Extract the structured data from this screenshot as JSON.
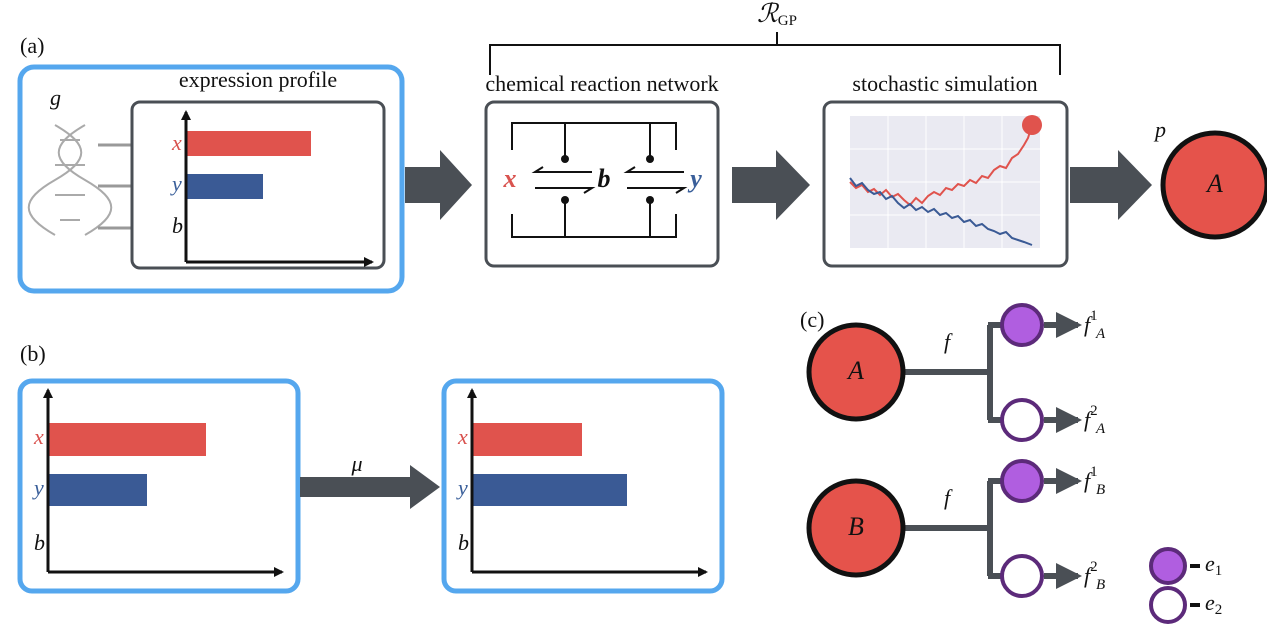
{
  "panels": {
    "a": {
      "label": "(a)",
      "genome": "g",
      "expression_profile": {
        "title": "expression profile",
        "labels": [
          "x",
          "y",
          "b"
        ]
      },
      "reaction_network": {
        "title": "chemical reaction network",
        "species": [
          "x",
          "b",
          "y"
        ]
      },
      "stochastic_simulation": {
        "title": "stochastic simulation"
      },
      "bracket": {
        "base": "ℛ",
        "sub": "GP"
      },
      "output": {
        "label": "p",
        "node": "A"
      }
    },
    "b": {
      "label": "(b)",
      "before": [
        "x",
        "y",
        "b"
      ],
      "operator": "μ",
      "after": [
        "x",
        "y",
        "b"
      ]
    },
    "c": {
      "label": "(c)",
      "trees": [
        {
          "node": "A",
          "edge": "f",
          "children": [
            {
              "base": "f",
              "sub": "A",
              "sup": "1"
            },
            {
              "base": "f",
              "sub": "A",
              "sup": "2"
            }
          ]
        },
        {
          "node": "B",
          "edge": "f",
          "children": [
            {
              "base": "f",
              "sub": "B",
              "sup": "1"
            },
            {
              "base": "f",
              "sub": "B",
              "sup": "2"
            }
          ]
        }
      ],
      "legend": [
        {
          "base": "e",
          "sub": "1"
        },
        {
          "base": "e",
          "sub": "2"
        }
      ]
    }
  }
}
